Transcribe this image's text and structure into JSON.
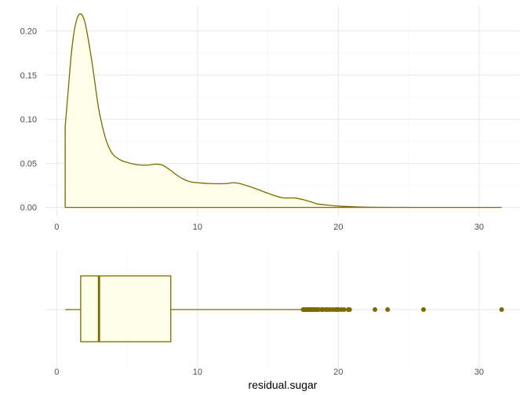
{
  "colors": {
    "stroke": "#7a6a00",
    "fill": "#fffee8",
    "point": "#7a6a00"
  },
  "chart_data": [
    {
      "type": "area",
      "title": "",
      "xlabel": "",
      "ylabel": "",
      "xlim": [
        -0.8,
        32.9
      ],
      "ylim": [
        -0.011,
        0.229
      ],
      "x_ticks": [
        0,
        10,
        20,
        30
      ],
      "x_tick_labels": [
        "0",
        "10",
        "20",
        "30"
      ],
      "y_ticks": [
        0.0,
        0.05,
        0.1,
        0.15,
        0.2
      ],
      "y_tick_labels": [
        "0.00",
        "0.05",
        "0.10",
        "0.15",
        "0.20"
      ],
      "grid": true,
      "series": [
        {
          "x": [
            0.6,
            0.8,
            1.0,
            1.2,
            1.4,
            1.6,
            1.8,
            2.0,
            2.2,
            2.5,
            2.8,
            3.0,
            3.3,
            3.6,
            4.0,
            4.5,
            5.0,
            5.5,
            6.0,
            6.5,
            7.0,
            7.5,
            8.0,
            8.5,
            9.0,
            9.5,
            10.0,
            11.0,
            12.0,
            12.5,
            13.0,
            14.0,
            15.0,
            16.0,
            17.0,
            18.0,
            18.5,
            19.0,
            20.0,
            21.0,
            22.0,
            23.0,
            25.0,
            28.0,
            31.6
          ],
          "y": [
            0.092,
            0.13,
            0.168,
            0.196,
            0.212,
            0.219,
            0.218,
            0.21,
            0.194,
            0.165,
            0.131,
            0.11,
            0.088,
            0.072,
            0.06,
            0.054,
            0.051,
            0.049,
            0.048,
            0.048,
            0.049,
            0.048,
            0.043,
            0.037,
            0.032,
            0.029,
            0.028,
            0.027,
            0.027,
            0.028,
            0.027,
            0.022,
            0.016,
            0.011,
            0.0105,
            0.0065,
            0.004,
            0.003,
            0.0015,
            0.0008,
            0.0003,
            0.0001,
            0.0,
            0.0,
            0.0
          ]
        }
      ]
    },
    {
      "type": "box",
      "title": "",
      "xlabel": "residual.sugar",
      "ylabel": "",
      "xlim": [
        -0.8,
        32.9
      ],
      "x_ticks": [
        0,
        10,
        20,
        30
      ],
      "x_tick_labels": [
        "0",
        "10",
        "20",
        "30"
      ],
      "grid": true,
      "box": {
        "whisker_low": 0.6,
        "q1": 1.7,
        "median": 3.0,
        "q3": 8.1,
        "whisker_high": 17.4
      },
      "outliers": [
        17.5,
        17.6,
        17.7,
        17.8,
        17.9,
        18.0,
        18.1,
        18.2,
        18.3,
        18.4,
        18.5,
        18.6,
        18.8,
        18.9,
        19.1,
        19.25,
        19.4,
        19.6,
        19.8,
        19.9,
        20.0,
        20.2,
        20.4,
        20.7,
        20.8,
        22.6,
        23.5,
        26.05,
        31.6
      ]
    }
  ]
}
